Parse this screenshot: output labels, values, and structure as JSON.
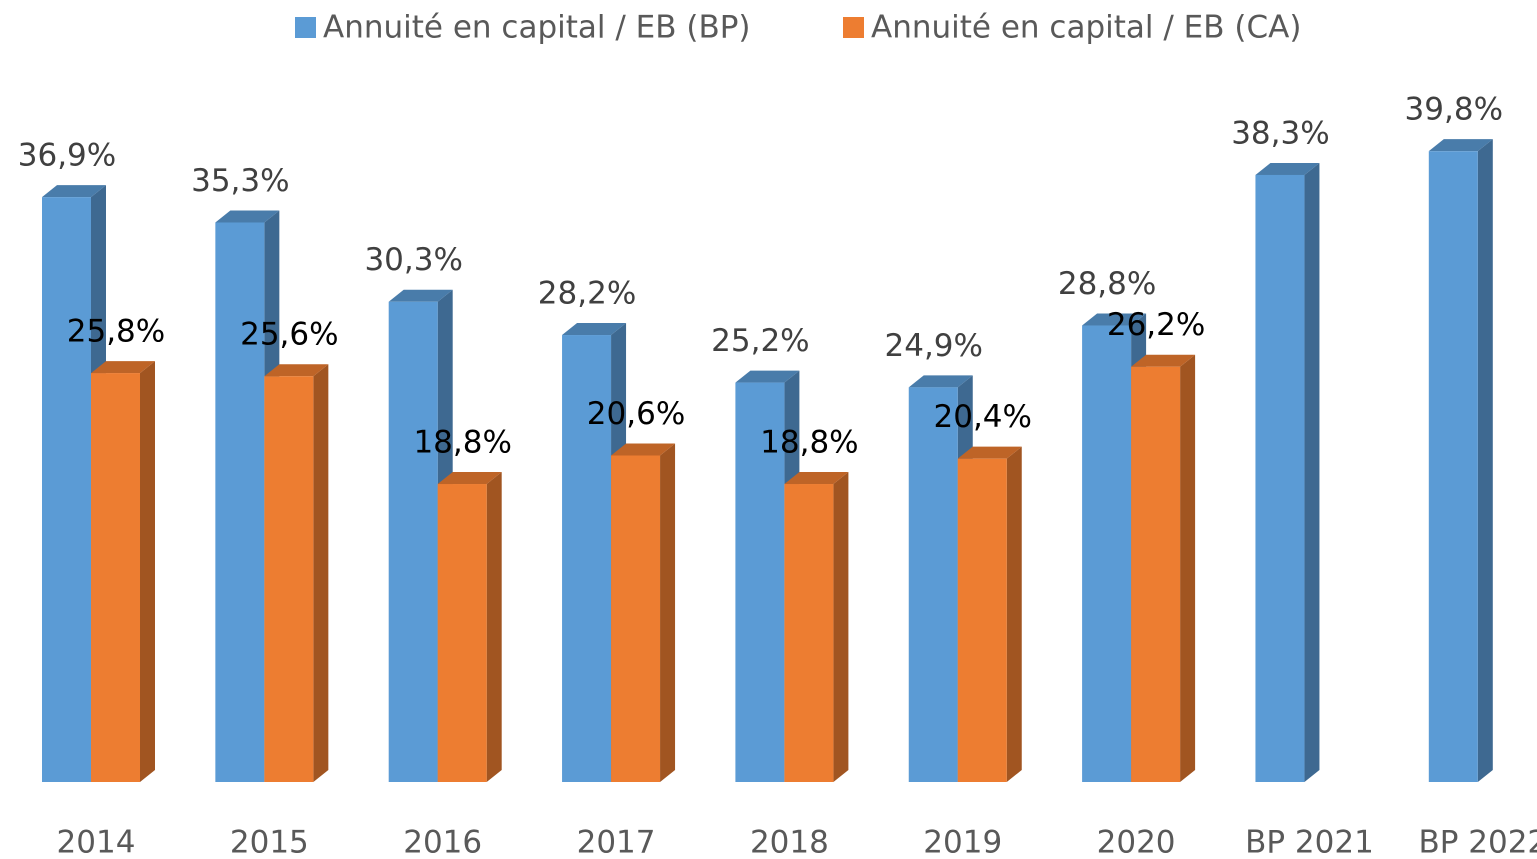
{
  "chart_data": {
    "type": "bar3d",
    "categories": [
      "2014",
      "2015",
      "2016",
      "2017",
      "2018",
      "2019",
      "2020",
      "BP 2021",
      "BP 2022"
    ],
    "series": [
      {
        "name": "Annuité en capital / EB (BP)",
        "color": "#5b9bd5",
        "values": [
          36.9,
          35.3,
          30.3,
          28.2,
          25.2,
          24.9,
          28.8,
          38.3,
          39.8
        ],
        "value_labels": [
          "36,9%",
          "35,3%",
          "30,3%",
          "28,2%",
          "25,2%",
          "24,9%",
          "28,8%",
          "38,3%",
          "39,8%"
        ]
      },
      {
        "name": "Annuité en capital / EB (CA)",
        "color": "#ed7d31",
        "values": [
          25.8,
          25.6,
          18.8,
          20.6,
          18.8,
          20.4,
          26.2,
          null,
          null
        ],
        "value_labels": [
          "25,8%",
          "25,6%",
          "18,8%",
          "20,6%",
          "18,8%",
          "20,4%",
          "26,2%",
          null,
          null
        ]
      }
    ],
    "legend": "top"
  }
}
